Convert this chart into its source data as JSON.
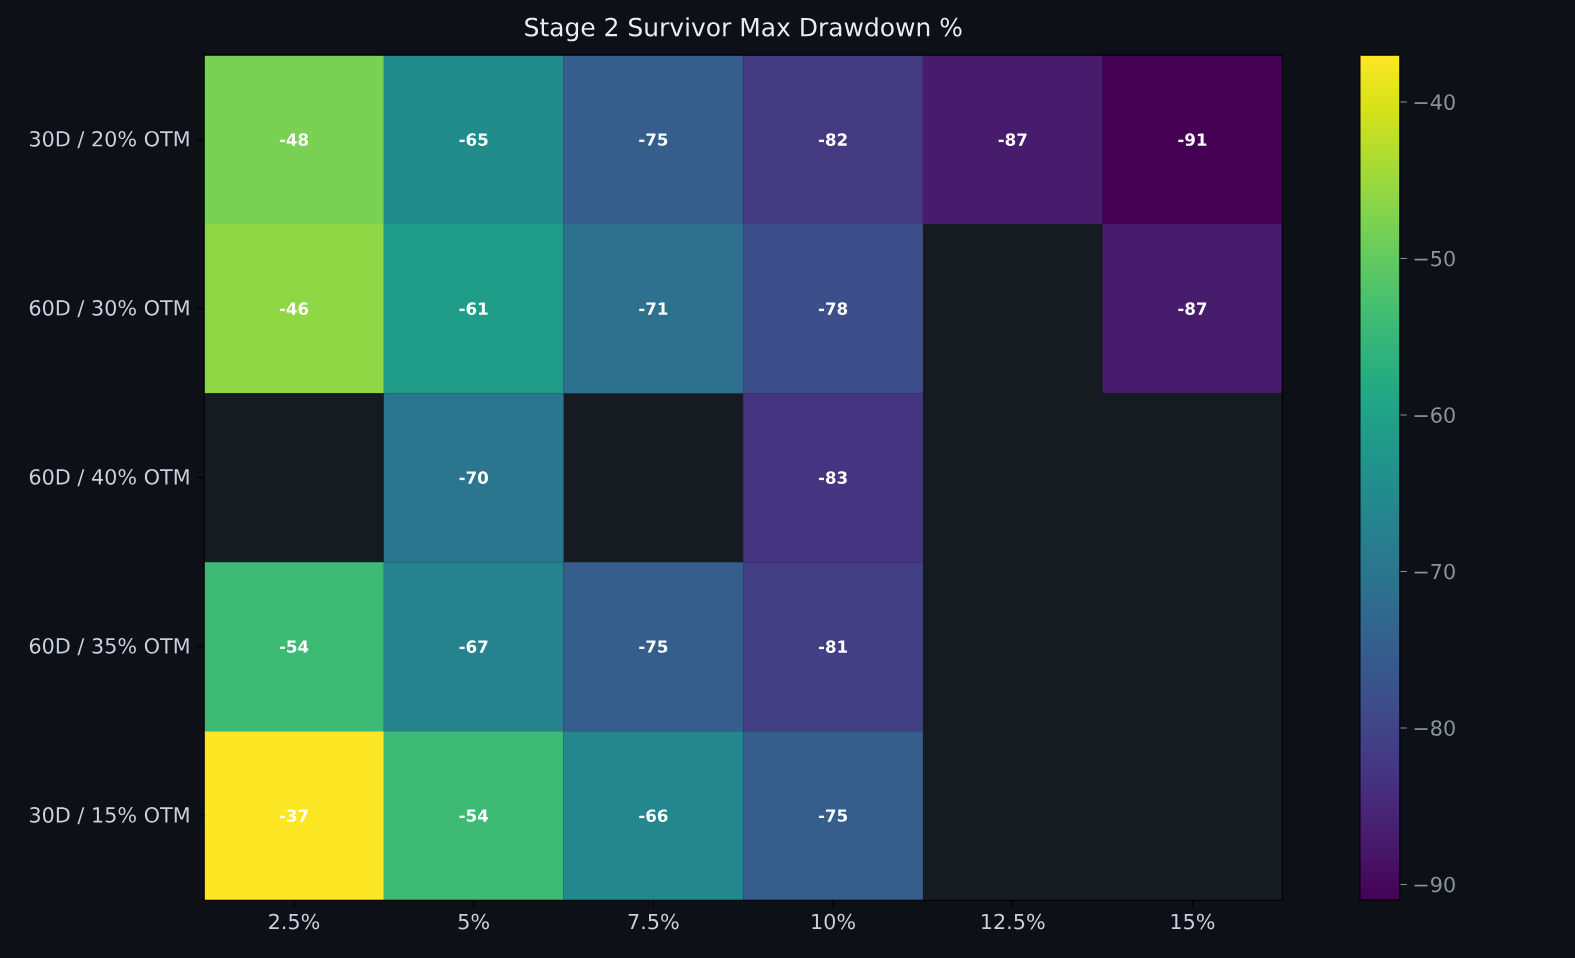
{
  "chart_data": {
    "type": "heatmap",
    "title": "Stage 2 Survivor Max Drawdown %",
    "categories": [
      "2.5%",
      "5%",
      "7.5%",
      "10%",
      "12.5%",
      "15%"
    ],
    "y_categories": [
      "30D / 20% OTM",
      "60D / 30% OTM",
      "60D / 40% OTM",
      "60D / 35% OTM",
      "30D / 15% OTM"
    ],
    "cells": [
      [
        -48,
        -65,
        -75,
        -82,
        -87,
        -91
      ],
      [
        -46,
        -61,
        -71,
        -78,
        null,
        -87
      ],
      [
        null,
        -70,
        null,
        -83,
        null,
        null
      ],
      [
        -54,
        -67,
        -75,
        -81,
        null,
        null
      ],
      [
        -37,
        -54,
        -66,
        -75,
        null,
        null
      ]
    ],
    "clim": [
      -91,
      -37
    ],
    "cticks": [
      {
        "value": -40,
        "label": "−40"
      },
      {
        "value": -50,
        "label": "−50"
      },
      {
        "value": -60,
        "label": "−60"
      },
      {
        "value": -70,
        "label": "−70"
      },
      {
        "value": -80,
        "label": "−80"
      },
      {
        "value": -90,
        "label": "−90"
      }
    ],
    "data_labels": true
  }
}
